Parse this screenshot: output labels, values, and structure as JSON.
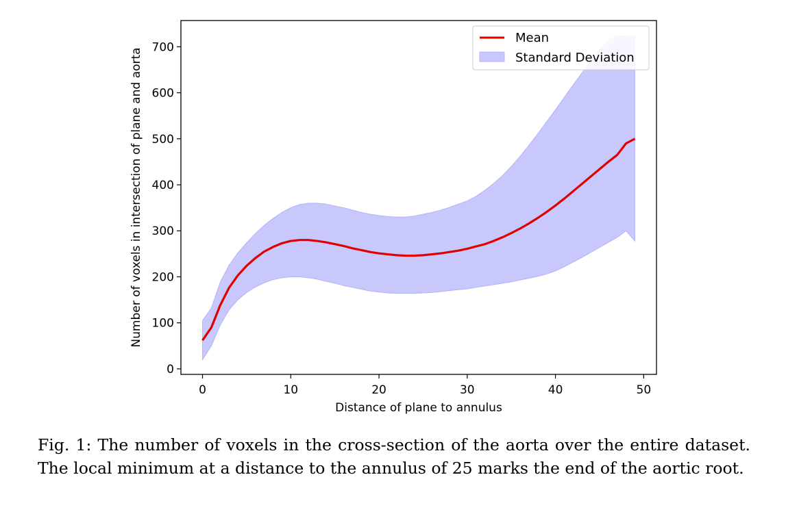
{
  "chart_data": {
    "type": "line",
    "title": "",
    "xlabel": "Distance of plane to annulus",
    "ylabel": "Number of voxels in intersection of plane and aorta",
    "xlim": [
      -2.45,
      51.45
    ],
    "ylim": [
      -12,
      757
    ],
    "xticks": [
      0,
      10,
      20,
      30,
      40,
      50
    ],
    "yticks": [
      0,
      100,
      200,
      300,
      400,
      500,
      600,
      700
    ],
    "grid": false,
    "legend": {
      "placement": "top-right",
      "entries": [
        "Mean",
        "Standard Deviation"
      ]
    },
    "colors": {
      "mean": "#e00000",
      "band_fill": "#c8c8fc",
      "band_edge": "#b4b4f4"
    },
    "x": [
      0,
      1,
      2,
      3,
      4,
      5,
      6,
      7,
      8,
      9,
      10,
      11,
      12,
      13,
      14,
      15,
      16,
      17,
      18,
      19,
      20,
      21,
      22,
      23,
      24,
      25,
      26,
      27,
      28,
      29,
      30,
      31,
      32,
      33,
      34,
      35,
      36,
      37,
      38,
      39,
      40,
      41,
      42,
      43,
      44,
      45,
      46,
      47,
      48,
      49
    ],
    "series": [
      {
        "name": "Mean",
        "values": [
          62,
          90,
          138,
          176,
          203,
          224,
          241,
          255,
          265,
          273,
          278,
          280,
          280,
          278,
          275,
          271,
          267,
          262,
          258,
          254,
          251,
          249,
          247,
          246,
          246,
          247,
          249,
          251,
          254,
          257,
          261,
          266,
          271,
          278,
          286,
          295,
          305,
          316,
          328,
          341,
          355,
          370,
          386,
          402,
          418,
          434,
          450,
          465,
          490,
          500
        ]
      },
      {
        "name": "Standard Deviation",
        "lower": [
          20,
          50,
          95,
          128,
          150,
          166,
          178,
          187,
          194,
          198,
          200,
          200,
          198,
          195,
          190,
          186,
          181,
          177,
          173,
          169,
          167,
          165,
          164,
          164,
          164,
          165,
          166,
          168,
          170,
          172,
          174,
          177,
          180,
          183,
          186,
          189,
          193,
          197,
          201,
          206,
          213,
          222,
          232,
          242,
          253,
          264,
          275,
          286,
          300,
          278
        ],
        "upper": [
          105,
          132,
          188,
          225,
          252,
          274,
          294,
          312,
          327,
          340,
          350,
          357,
          360,
          360,
          358,
          354,
          350,
          345,
          340,
          336,
          333,
          331,
          330,
          330,
          332,
          336,
          340,
          345,
          351,
          358,
          365,
          375,
          388,
          403,
          420,
          440,
          462,
          486,
          511,
          537,
          563,
          590,
          617,
          643,
          668,
          692,
          713,
          725,
          722,
          722
        ]
      }
    ]
  },
  "caption": "Fig. 1: The number of voxels in the cross-section of the aorta over the entire dataset. The local minimum at a distance to the annulus of 25 marks the end of the aortic root."
}
